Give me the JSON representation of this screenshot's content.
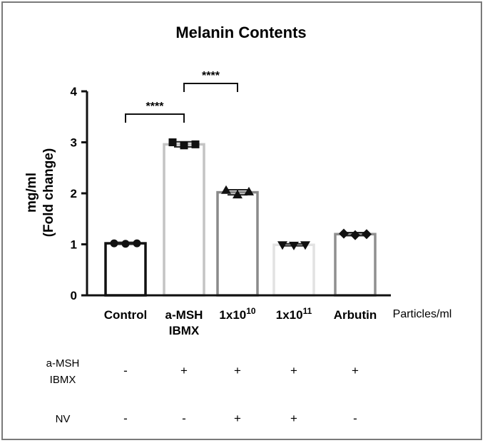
{
  "chart_data": {
    "type": "bar",
    "title": "Melanin Contents",
    "ylabel_line1": "mg/ml",
    "ylabel_line2": "(Fold change)",
    "x_unit_label": "Particles/ml",
    "ylim": [
      0,
      4
    ],
    "yticks": [
      "0",
      "1",
      "2",
      "3",
      "4"
    ],
    "categories": [
      {
        "line1": "Control",
        "line2": "",
        "base": "",
        "sup": ""
      },
      {
        "line1": "a-MSH",
        "line2": "IBMX",
        "base": "",
        "sup": ""
      },
      {
        "line1": "",
        "line2": "",
        "base": "1x10",
        "sup": "10"
      },
      {
        "line1": "",
        "line2": "",
        "base": "1x10",
        "sup": "11"
      },
      {
        "line1": "Arbutin",
        "line2": "",
        "base": "",
        "sup": ""
      }
    ],
    "values": [
      1.02,
      2.96,
      2.02,
      0.99,
      1.2
    ],
    "errors": [
      0.02,
      0.05,
      0.05,
      0.02,
      0.03
    ],
    "points": [
      [
        1.02,
        1.01,
        1.02
      ],
      [
        3.0,
        2.94,
        2.96
      ],
      [
        2.06,
        1.97,
        2.03
      ],
      [
        0.99,
        0.98,
        0.99
      ],
      [
        1.21,
        1.18,
        1.2
      ]
    ],
    "markers": [
      "circle",
      "square",
      "triangle-up",
      "triangle-down",
      "diamond"
    ],
    "bar_colors": [
      "#111111",
      "#c4c4c4",
      "#8a8a8a",
      "#e2e2e2",
      "#8f8f8f"
    ],
    "marker_color": "#111111",
    "significance": [
      {
        "from": 0,
        "to": 1,
        "label": "****"
      },
      {
        "from": 1,
        "to": 2,
        "label": "****"
      }
    ],
    "treatment_rows": [
      {
        "label_line1": "a-MSH",
        "label_line2": "IBMX",
        "signs": [
          "-",
          "+",
          "+",
          "+",
          "+"
        ]
      },
      {
        "label_line1": "NV",
        "label_line2": "",
        "signs": [
          "-",
          "-",
          "+",
          "+",
          "-"
        ]
      }
    ]
  }
}
